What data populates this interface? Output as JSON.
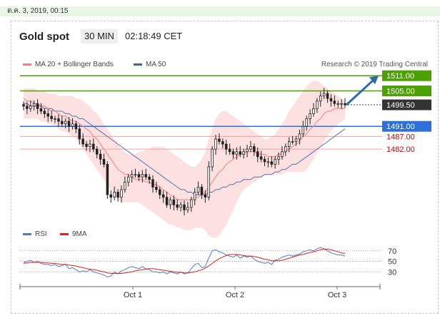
{
  "date_stamp": "ต.ค. 3, 2019, 00:15",
  "header": {
    "title": "Gold spot",
    "timeframe": "30 MIN",
    "time": "02:18:49 CET"
  },
  "legend": {
    "ma20_label": "MA 20 + Bollinger Bands",
    "ma50_label": "MA 50",
    "rsi_label": "RSI",
    "ma9_label": "9MA"
  },
  "credit": "Research © 2019 Trading Central",
  "colors": {
    "green_level": "#4ca000",
    "current_price": "#333333",
    "blue_level": "#2f6fd8",
    "red_level": "#cc0000",
    "ma20": "#f08080",
    "bollinger_fill": "#fde0e0",
    "ma50": "#5870b0",
    "rsi": "#4d7cc9",
    "ma9": "#e02020",
    "arrow": "#2f6aa8"
  },
  "price_levels": [
    {
      "label": "1511.00",
      "value": 1511.0,
      "kind": "target"
    },
    {
      "label": "1505.00",
      "value": 1505.0,
      "kind": "target"
    },
    {
      "label": "1499.50",
      "value": 1499.5,
      "kind": "current"
    },
    {
      "label": "1491.00",
      "value": 1491.0,
      "kind": "pivot"
    },
    {
      "label": "1487.00",
      "value": 1487.0,
      "kind": "support"
    },
    {
      "label": "1482.00",
      "value": 1482.0,
      "kind": "support"
    }
  ],
  "chart_data": {
    "type": "candlestick",
    "x_ticks": [
      "Oct 1",
      "Oct 2",
      "Oct 3"
    ],
    "y_range": [
      1455,
      1515
    ],
    "closes": [
      1499,
      1498,
      1499,
      1500,
      1498,
      1497,
      1496,
      1495,
      1494,
      1494,
      1493,
      1492,
      1493,
      1491,
      1492,
      1490,
      1486,
      1484,
      1483,
      1484,
      1482,
      1480,
      1478,
      1476,
      1464,
      1463,
      1465,
      1463,
      1466,
      1469,
      1471,
      1472,
      1472,
      1471,
      1472,
      1471,
      1470,
      1467,
      1466,
      1464,
      1463,
      1460,
      1462,
      1460,
      1459,
      1460,
      1458,
      1459,
      1462,
      1465,
      1467,
      1464,
      1463,
      1475,
      1482,
      1486,
      1485,
      1484,
      1482,
      1481,
      1480,
      1481,
      1480,
      1481,
      1482,
      1483,
      1481,
      1479,
      1478,
      1477,
      1477,
      1476,
      1478,
      1479,
      1481,
      1483,
      1485,
      1485,
      1486,
      1488,
      1491,
      1494,
      1496,
      1498,
      1501,
      1503,
      1504,
      1502,
      1501,
      1500,
      1500,
      1500,
      1499.5
    ],
    "ma20": [
      1502,
      1501,
      1501,
      1500,
      1500,
      1499,
      1499,
      1498,
      1497,
      1497,
      1496,
      1495,
      1495,
      1494,
      1493,
      1493,
      1492,
      1491,
      1490,
      1489,
      1487,
      1486,
      1484,
      1482,
      1480,
      1478,
      1476,
      1474,
      1473,
      1472,
      1472,
      1471,
      1470,
      1470,
      1470,
      1469,
      1469,
      1468,
      1468,
      1467,
      1466,
      1465,
      1464,
      1463,
      1462,
      1462,
      1462,
      1462,
      1462,
      1463,
      1463,
      1464,
      1465,
      1467,
      1469,
      1471,
      1473,
      1474,
      1476,
      1477,
      1478,
      1479,
      1480,
      1480,
      1481,
      1481,
      1481,
      1480,
      1480,
      1480,
      1479,
      1479,
      1479,
      1480,
      1480,
      1481,
      1482,
      1483,
      1484,
      1485,
      1487,
      1488,
      1490,
      1491,
      1493,
      1494,
      1496,
      1497,
      1497,
      1498,
      1498,
      1498,
      1498
    ],
    "ma50": [
      1500,
      1500,
      1499,
      1499,
      1499,
      1499,
      1498,
      1498,
      1498,
      1497,
      1497,
      1497,
      1496,
      1496,
      1495,
      1495,
      1494,
      1494,
      1493,
      1492,
      1491,
      1490,
      1489,
      1488,
      1487,
      1486,
      1485,
      1484,
      1483,
      1482,
      1481,
      1480,
      1479,
      1478,
      1477,
      1476,
      1475,
      1474,
      1473,
      1472,
      1471,
      1470,
      1469,
      1468,
      1467,
      1466,
      1466,
      1465,
      1465,
      1464,
      1464,
      1464,
      1464,
      1465,
      1465,
      1466,
      1466,
      1467,
      1467,
      1468,
      1468,
      1469,
      1469,
      1470,
      1470,
      1470,
      1471,
      1471,
      1471,
      1472,
      1472,
      1472,
      1473,
      1473,
      1474,
      1474,
      1475,
      1476,
      1476,
      1477,
      1478,
      1479,
      1480,
      1481,
      1482,
      1483,
      1484,
      1485,
      1486,
      1487,
      1488,
      1489,
      1490
    ],
    "boll_upper": [
      1506,
      1506,
      1506,
      1506,
      1505,
      1505,
      1505,
      1504,
      1504,
      1504,
      1503,
      1503,
      1503,
      1503,
      1503,
      1502,
      1502,
      1501,
      1500,
      1499,
      1497,
      1496,
      1494,
      1492,
      1490,
      1488,
      1486,
      1484,
      1482,
      1481,
      1480,
      1480,
      1480,
      1481,
      1481,
      1482,
      1482,
      1483,
      1483,
      1483,
      1483,
      1482,
      1481,
      1480,
      1479,
      1478,
      1477,
      1476,
      1475,
      1475,
      1476,
      1478,
      1481,
      1486,
      1490,
      1494,
      1496,
      1497,
      1497,
      1496,
      1495,
      1494,
      1493,
      1492,
      1491,
      1490,
      1489,
      1488,
      1487,
      1486,
      1486,
      1487,
      1488,
      1490,
      1492,
      1494,
      1497,
      1499,
      1501,
      1503,
      1505,
      1507,
      1508,
      1509,
      1509,
      1508,
      1507,
      1506,
      1505,
      1504,
      1503,
      1502,
      1501
    ],
    "boll_lower": [
      1494,
      1494,
      1494,
      1494,
      1494,
      1493,
      1493,
      1492,
      1492,
      1491,
      1490,
      1489,
      1489,
      1488,
      1487,
      1486,
      1484,
      1482,
      1480,
      1478,
      1476,
      1474,
      1472,
      1470,
      1468,
      1466,
      1464,
      1462,
      1461,
      1461,
      1461,
      1461,
      1461,
      1461,
      1460,
      1459,
      1458,
      1457,
      1456,
      1455,
      1454,
      1453,
      1452,
      1452,
      1451,
      1451,
      1450,
      1450,
      1450,
      1451,
      1451,
      1451,
      1450,
      1448,
      1447,
      1447,
      1448,
      1450,
      1452,
      1455,
      1458,
      1461,
      1464,
      1466,
      1467,
      1468,
      1469,
      1470,
      1471,
      1472,
      1472,
      1472,
      1472,
      1472,
      1472,
      1473,
      1473,
      1473,
      1473,
      1473,
      1473,
      1474,
      1476,
      1478,
      1481,
      1483,
      1485,
      1487,
      1489,
      1491,
      1492,
      1493,
      1494
    ],
    "rsi": [
      48,
      50,
      52,
      48,
      50,
      46,
      44,
      44,
      42,
      44,
      40,
      42,
      44,
      36,
      38,
      34,
      30,
      32,
      30,
      34,
      30,
      28,
      26,
      24,
      20,
      22,
      30,
      26,
      32,
      34,
      38,
      40,
      38,
      36,
      40,
      36,
      34,
      30,
      30,
      28,
      30,
      26,
      30,
      28,
      26,
      30,
      26,
      28,
      36,
      44,
      46,
      38,
      40,
      56,
      70,
      72,
      68,
      66,
      62,
      60,
      58,
      62,
      56,
      60,
      58,
      60,
      54,
      50,
      48,
      46,
      48,
      44,
      52,
      54,
      58,
      60,
      62,
      60,
      62,
      64,
      68,
      70,
      72,
      70,
      74,
      76,
      74,
      70,
      66,
      64,
      62,
      62,
      60
    ],
    "rsi_ma9": [
      46,
      47,
      48,
      48,
      48,
      48,
      47,
      47,
      46,
      46,
      45,
      44,
      44,
      43,
      42,
      41,
      39,
      38,
      36,
      35,
      34,
      33,
      31,
      30,
      28,
      27,
      27,
      27,
      27,
      28,
      29,
      30,
      32,
      33,
      34,
      35,
      36,
      36,
      35,
      34,
      33,
      32,
      31,
      30,
      29,
      29,
      28,
      28,
      29,
      30,
      32,
      34,
      37,
      41,
      46,
      51,
      55,
      58,
      61,
      63,
      63,
      63,
      62,
      61,
      60,
      60,
      59,
      58,
      56,
      54,
      53,
      51,
      51,
      51,
      52,
      54,
      56,
      58,
      60,
      62,
      63,
      65,
      67,
      68,
      70,
      72,
      73,
      73,
      72,
      70,
      68,
      66,
      65
    ],
    "rsi_levels": [
      70,
      50,
      30
    ],
    "rsi_range": [
      10,
      90
    ],
    "arrow_target": 1511.0
  }
}
